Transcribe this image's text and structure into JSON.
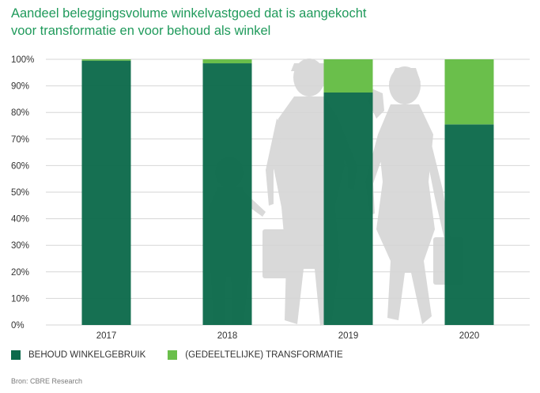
{
  "title_line1": "Aandeel beleggingsvolume winkelvastgoed dat is aangekocht",
  "title_line2": "voor transformatie en voor behoud als winkel",
  "source": "Bron: CBRE Research",
  "colors": {
    "behoud": "#0c6a4b",
    "transformatie": "#6abf4b",
    "grid": "#d6d6d6",
    "title": "#1f9a5b",
    "silhouette": "#d9d9d9"
  },
  "chart_data": {
    "type": "bar",
    "stacked": true,
    "categories": [
      "2017",
      "2018",
      "2019",
      "2020"
    ],
    "series": [
      {
        "name": "BEHOUD WINKELGEBRUIK",
        "values": [
          99.5,
          98.5,
          87.5,
          75.5
        ]
      },
      {
        "name": "(GEDEELTELIJKE) TRANSFORMATIE",
        "values": [
          0.5,
          1.5,
          12.5,
          24.5
        ]
      }
    ],
    "ylim": [
      0,
      100
    ],
    "yticks": [
      "0%",
      "10%",
      "20%",
      "30%",
      "40%",
      "50%",
      "60%",
      "70%",
      "80%",
      "90%",
      "100%"
    ],
    "grid": true,
    "legend_position": "bottom-left"
  }
}
